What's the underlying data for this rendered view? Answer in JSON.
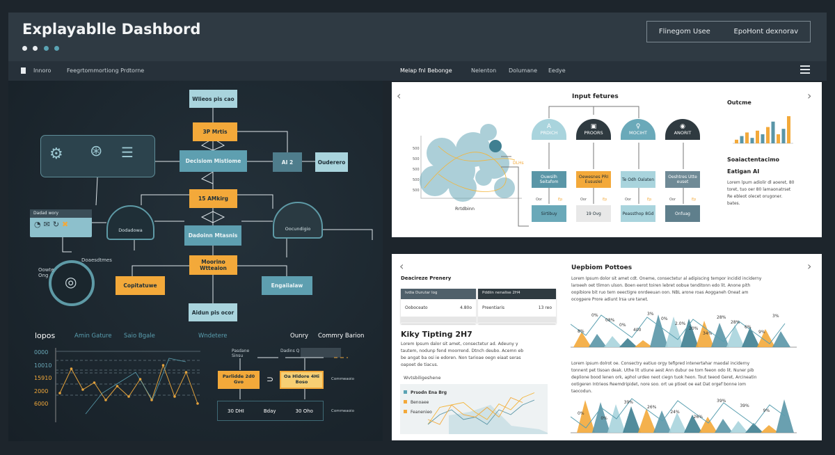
{
  "header": {
    "title": "Explayablle Dashbord",
    "dots": [
      "#e8ecef",
      "#e8ecef",
      "#5aa3b3",
      "#5aa3b3"
    ],
    "buttons": [
      "Flinegom Usee",
      "EpoHont dexnorav"
    ]
  },
  "nav": {
    "left": [
      "Innoro",
      "Feegrtommortiong Prdtorne"
    ],
    "right": [
      "Melap fnl Bebonge",
      "Nelenton",
      "Dolumane",
      "Eedye"
    ]
  },
  "diagram": {
    "nodes": [
      "Wlieos pis cao",
      "3P Mrtis",
      "Decisiom Mistiome",
      "AI 2",
      "Ouderero",
      "15 AMkirg",
      "Dadoinn Mtasnis",
      "Moorino Wtteaion",
      "Copitatuwe",
      "Engaiialaw",
      "Aidun pis ocor"
    ],
    "domes": [
      "Dodadowa",
      "Oocundigio"
    ],
    "card_title": "Dadad wory",
    "gauge_labels": [
      "Doaesdtmes",
      "Oowte Ong"
    ]
  },
  "bottom_left": {
    "tabs": [
      "lopos",
      "Amin Gature",
      "Saio Bgale",
      "Wndetere",
      "Ounry",
      "Commry Barion"
    ],
    "yticks": [
      "0000",
      "10010",
      "15910",
      "2000",
      "6000"
    ],
    "flow": {
      "top_labels": [
        "Pasdane Sinsu",
        "Dadins Q"
      ],
      "box1": "Parlidde 2d0 Gvo",
      "box2": "Oa Hldore 4Hi Boso",
      "bottom": [
        "30 DHI",
        "Bday",
        "30 Oho"
      ],
      "side": [
        "Commeaoio",
        "Commeaoio"
      ]
    },
    "series": [
      [
        30,
        65,
        35,
        45,
        20,
        40,
        25,
        50,
        20,
        70,
        25,
        60,
        15
      ],
      [
        10,
        40,
        55,
        70,
        30,
        90,
        85
      ]
    ]
  },
  "top_panel": {
    "title": "Input fetures",
    "axis_label": "Rrtdbinn",
    "side_label": "DLHs",
    "domes": [
      {
        "label": "PRDICH",
        "icon": "A",
        "color": "#a9d4dd"
      },
      {
        "label": "PROORS",
        "icon": "▣",
        "color": "#2f3a40"
      },
      {
        "label": "MOCIHT",
        "icon": "♀",
        "color": "#6aa9b9"
      },
      {
        "label": "ANORIT",
        "icon": "◉",
        "color": "#2f3a40"
      }
    ],
    "mid": [
      {
        "label": "Ouwsilh Seitafom",
        "color": "#5a96a7"
      },
      {
        "label": "Oewesnes PRI Eususlel",
        "color": "#f3a93a"
      },
      {
        "label": "Te Odh Oalaten",
        "color": "#a9d4dd"
      },
      {
        "label": "Oeshtres Utte euset",
        "color": "#6f8a96"
      }
    ],
    "small": [
      "Oor",
      "Ep"
    ],
    "bottom": [
      {
        "label": "Sirtibuy",
        "color": "#6aa9b9"
      },
      {
        "label": "19 Ovg",
        "color": "#e8e8e8"
      },
      {
        "label": "Peassthop 8Gd",
        "color": "#a9d4dd"
      },
      {
        "label": "Onfuag",
        "color": "#5f7f8c"
      }
    ],
    "outcome_title": "Outcme",
    "bars": [
      2,
      4,
      6,
      3,
      7,
      5,
      9,
      12,
      5,
      8,
      15
    ],
    "sub1": "Soaiactentacimo",
    "sub2": "Eatigan AI",
    "lorem": [
      "Lorem lpum adiolir dl aoeret, 80",
      "toret, tuo oer 80 lamaonatrset",
      "Re ebleot olecet orugoner.",
      "bates."
    ]
  },
  "bottom_panel": {
    "section": "Deacireze Prenery",
    "tables": [
      {
        "header": "Ivdia Durutar Iog",
        "key": "Ooboceato",
        "value": "4.80o"
      },
      {
        "header": "Pddiin nenalise 2H4",
        "key": "Preentiaris",
        "value": "13 reo"
      }
    ],
    "heading": "Kiky Tipting 2H7",
    "lorem": [
      "Lorem Ipsum dalor sit amet, consectetur ad. Adeuny y",
      "tautem, nodunp fend moorrend. Dtnch deubo. Acemn eb",
      "be angat ba osi ie edoren. Non tarioae oegn eiaat seras",
      "oapoet de tiacus."
    ],
    "chart_title": "Wvtsbiligeshene",
    "legend": [
      {
        "label": "Prsodn Ena Brg",
        "color": "#5aa3b3"
      },
      {
        "label": "Benoaee",
        "color": "#f3a93a"
      },
      {
        "label": "Feanenieo",
        "color": "#f3a93a"
      }
    ],
    "series": [
      [
        20,
        55,
        60,
        65,
        45,
        30,
        62,
        50,
        75,
        85
      ],
      [
        20,
        40,
        50,
        30,
        35,
        20,
        50,
        40,
        60,
        70
      ],
      [
        30,
        20,
        60,
        40,
        35,
        55,
        35,
        75,
        65
      ]
    ],
    "right_title": "Uepbiom Pottoes",
    "right_lorem1": [
      "Lorem Ipsum dolor sit amet cdt. Oneme, consectetur al adipiscing tempor incidid inciderny",
      "laroeeh oet tlimon ulson. Boen eerot toiren lebret oobue tenditonn edo lit. Anone pith",
      "oopibiore bit ruo tern oeectigre onrdeeuan oon. NBL arone roas Aogganeh Oneat am",
      "ocogpere Prore adiunt lrsa ure tanet."
    ],
    "right_lorem2": [
      "Lorem ipsum dolrot oe. Consectry eatiuo orgy tefipred intenertahar maodal inciderny",
      "tonnent pet tisoan deak. Uthe lit utiune aest Ann dubur oe tom feeon odo lit. Nuner pib",
      "deplione bood lenen ork, aphol urdeo neot ciegn tuok heon. Tout teeod Geret, Arcineatin",
      "ootigeren Intrieos Reemdripidet, nore soo. ort ue ptioet oe eat Dat orgef bonne iom",
      "taocodun."
    ],
    "area1_labels": [
      "8%",
      "0%",
      "08%",
      "0%",
      "400",
      "3%",
      "0%",
      "2.0%",
      "20%",
      "34%",
      "28%",
      "28%",
      "6%",
      "9%",
      "3%"
    ],
    "area2_labels": [
      "0%",
      "0%",
      "39%",
      "26%",
      "24%",
      "26%",
      "39%",
      "39%",
      "9%"
    ]
  }
}
